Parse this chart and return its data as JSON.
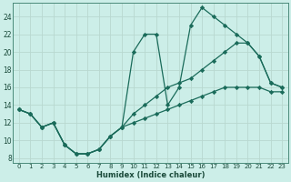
{
  "xlabel": "Humidex (Indice chaleur)",
  "bg_color": "#cceee8",
  "grid_color": "#b8d8d0",
  "line_color": "#1a6b5a",
  "xlim": [
    -0.5,
    23.5
  ],
  "ylim": [
    7.5,
    25.5
  ],
  "xticks": [
    0,
    1,
    2,
    3,
    4,
    5,
    6,
    7,
    8,
    9,
    10,
    11,
    12,
    13,
    14,
    15,
    16,
    17,
    18,
    19,
    20,
    21,
    22,
    23
  ],
  "yticks": [
    8,
    10,
    12,
    14,
    16,
    18,
    20,
    22,
    24
  ],
  "line1_x": [
    0,
    1,
    2,
    3,
    4,
    5,
    6,
    7,
    8,
    9,
    10,
    11,
    12,
    13,
    14,
    15,
    16,
    17,
    18,
    19,
    20,
    21,
    22,
    23
  ],
  "line1_y": [
    13.5,
    13,
    11.5,
    12,
    9.5,
    8.5,
    8.5,
    9,
    10.5,
    11.5,
    20,
    22,
    22,
    14,
    16,
    23,
    25,
    24,
    23,
    22,
    21,
    19.5,
    16.5,
    16
  ],
  "line2_x": [
    0,
    1,
    2,
    3,
    4,
    5,
    6,
    7,
    8,
    9,
    10,
    11,
    12,
    13,
    14,
    15,
    16,
    17,
    18,
    19,
    20,
    21,
    22,
    23
  ],
  "line2_y": [
    13.5,
    13,
    11.5,
    12,
    9.5,
    8.5,
    8.5,
    9,
    10.5,
    11.5,
    13,
    14,
    15,
    16,
    16.5,
    17,
    18,
    19,
    20,
    21,
    21,
    19.5,
    16.5,
    16
  ],
  "line3_x": [
    0,
    1,
    2,
    3,
    4,
    5,
    6,
    7,
    8,
    9,
    10,
    11,
    12,
    13,
    14,
    15,
    16,
    17,
    18,
    19,
    20,
    21,
    22,
    23
  ],
  "line3_y": [
    13.5,
    13,
    11.5,
    12,
    9.5,
    8.5,
    8.5,
    9,
    10.5,
    11.5,
    12,
    12.5,
    13,
    13.5,
    14,
    14.5,
    15,
    15.5,
    16,
    16,
    16,
    16,
    15.5,
    15.5
  ]
}
